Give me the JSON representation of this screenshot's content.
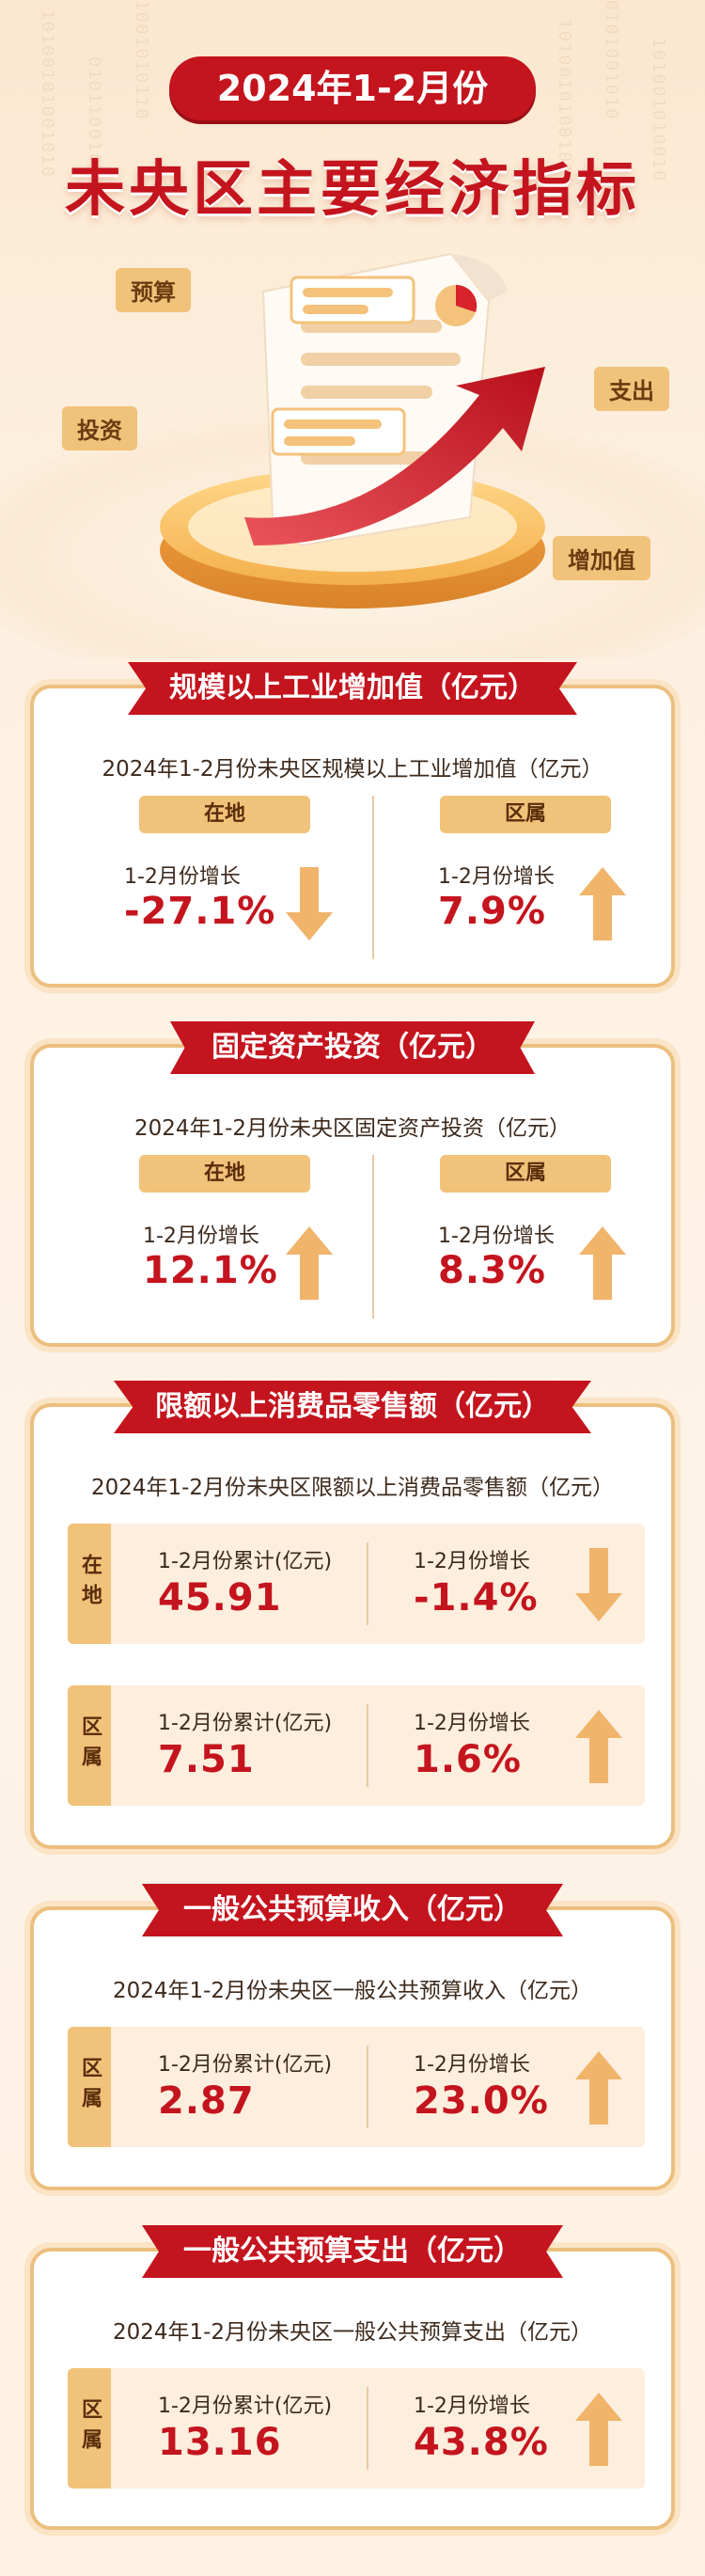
{
  "header": {
    "year_label": "2024年1-2月份",
    "title": "未央区主要经济指标",
    "tags": {
      "budget": "预算",
      "invest": "投资",
      "expense": "支出",
      "added": "增加值"
    }
  },
  "colors": {
    "red": "#c4141e",
    "gold": "#f1c27a",
    "border": "#ecbf7f",
    "arrow": "#f0b46a"
  },
  "industry": {
    "title": "规模以上工业增加值（亿元）",
    "subtitle": "2024年1-2月份未央区规模以上工业增加值（亿元）",
    "left": {
      "tag": "在地",
      "label": "1-2月份增长",
      "value": "-27.1%",
      "direction": "down"
    },
    "right": {
      "tag": "区属",
      "label": "1-2月份增长",
      "value": "7.9%",
      "direction": "up"
    }
  },
  "investment": {
    "title": "固定资产投资（亿元）",
    "subtitle": "2024年1-2月份未央区固定资产投资（亿元）",
    "left": {
      "tag": "在地",
      "label": "1-2月份增长",
      "value": "12.1%",
      "direction": "up"
    },
    "right": {
      "tag": "区属",
      "label": "1-2月份增长",
      "value": "8.3%",
      "direction": "up"
    }
  },
  "retail": {
    "title": "限额以上消费品零售额（亿元）",
    "subtitle": "2024年1-2月份未央区限额以上消费品零售额（亿元）",
    "rows": [
      {
        "side": "在地",
        "cum_label": "1-2月份累计(亿元)",
        "cum_value": "45.91",
        "growth_label": "1-2月份增长",
        "growth_value": "-1.4%",
        "direction": "down"
      },
      {
        "side": "区属",
        "cum_label": "1-2月份累计(亿元)",
        "cum_value": "7.51",
        "growth_label": "1-2月份增长",
        "growth_value": "1.6%",
        "direction": "up"
      }
    ]
  },
  "revenue": {
    "title": "一般公共预算收入（亿元）",
    "subtitle": "2024年1-2月份未央区一般公共预算收入（亿元）",
    "rows": [
      {
        "side": "区属",
        "cum_label": "1-2月份累计(亿元)",
        "cum_value": "2.87",
        "growth_label": "1-2月份增长",
        "growth_value": "23.0%",
        "direction": "up"
      }
    ]
  },
  "expenditure": {
    "title": "一般公共预算支出（亿元）",
    "subtitle": "2024年1-2月份未央区一般公共预算支出（亿元）",
    "rows": [
      {
        "side": "区属",
        "cum_label": "1-2月份累计(亿元)",
        "cum_value": "13.16",
        "growth_label": "1-2月份增长",
        "growth_value": "43.8%",
        "direction": "up"
      }
    ]
  }
}
